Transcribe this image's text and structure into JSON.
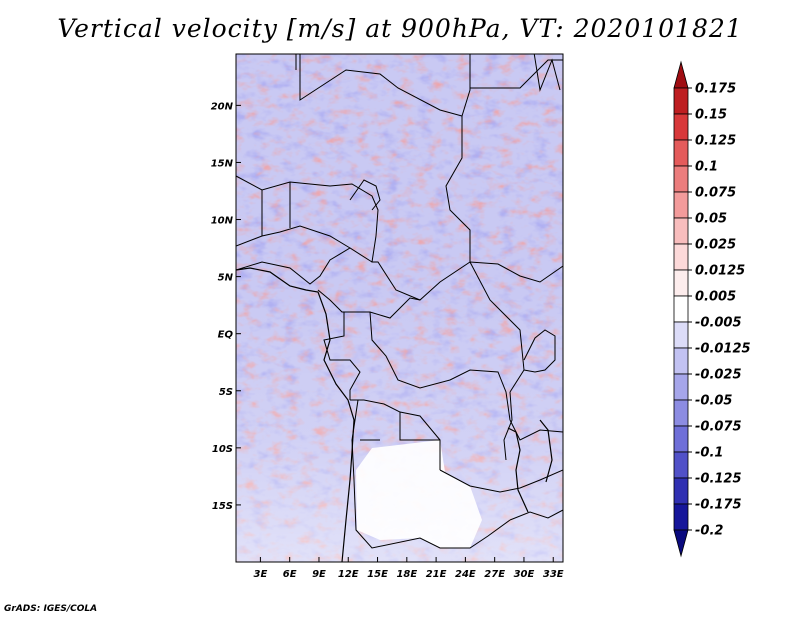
{
  "title": "Vertical velocity [m/s] at 900hPa, VT: 2020101821",
  "credit": "GrADS: IGES/COLA",
  "map": {
    "lat_ticks": [
      "20N",
      "15N",
      "10N",
      "5N",
      "EQ",
      "5S",
      "10S",
      "15S"
    ],
    "lat_values": [
      20,
      15,
      10,
      5,
      0,
      -5,
      -10,
      -15
    ],
    "lon_ticks": [
      "3E",
      "6E",
      "9E",
      "12E",
      "15E",
      "18E",
      "21E",
      "24E",
      "27E",
      "30E",
      "33E"
    ],
    "lon_values": [
      3,
      6,
      9,
      12,
      15,
      18,
      21,
      24,
      27,
      30,
      33
    ],
    "lat_range": [
      -20,
      24.5
    ],
    "lon_range": [
      0.5,
      34
    ]
  },
  "colorbar": {
    "labels": [
      "0.175",
      "0.15",
      "0.125",
      "0.1",
      "0.075",
      "0.05",
      "0.025",
      "0.0125",
      "0.005",
      "-0.005",
      "-0.0125",
      "-0.025",
      "-0.05",
      "-0.075",
      "-0.1",
      "-0.125",
      "-0.175",
      "-0.2"
    ],
    "colors": [
      "#9f0d12",
      "#be1e21",
      "#d8383a",
      "#e45b5b",
      "#ec7d7d",
      "#f39b9b",
      "#f8bdbd",
      "#fcd9d9",
      "#fdeded",
      "#ffffff",
      "#dcdcf8",
      "#c2c2f2",
      "#a6a6ea",
      "#8c8ce2",
      "#6f6fd8",
      "#5151c8",
      "#3030b2",
      "#16169a",
      "#0a0a7e"
    ]
  }
}
